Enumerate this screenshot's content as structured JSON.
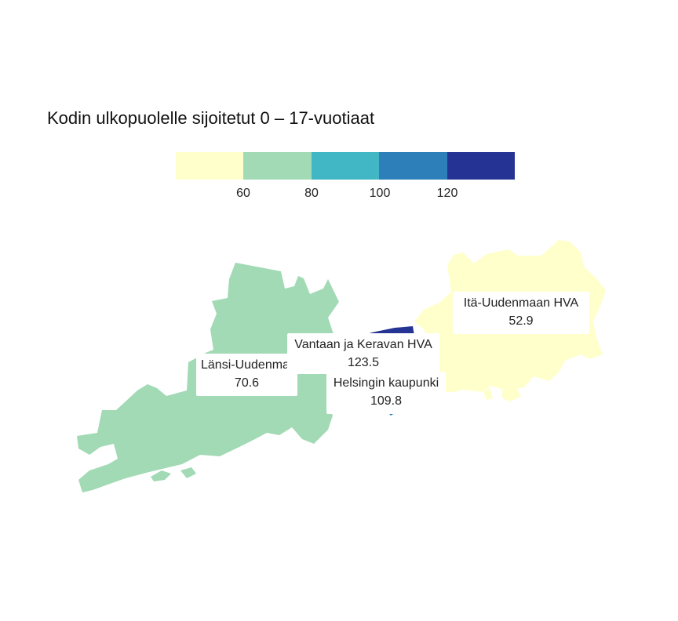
{
  "title": "Kodin ulkopuolelle sijoitetut 0 – 17-vuotiaat",
  "legend": {
    "colors": [
      "#ffffcc",
      "#a1dab4",
      "#41b6c4",
      "#2c7fb8",
      "#253494"
    ],
    "ticks": [
      "60",
      "80",
      "100",
      "120"
    ]
  },
  "regions": [
    {
      "name": "Länsi-Uudenmaan HVA",
      "value": "70.6",
      "color": "#a1dab4"
    },
    {
      "name": "Itä-Uudenmaan HVA",
      "value": "52.9",
      "color": "#ffffcc"
    },
    {
      "name": "Vantaan ja Keravan HVA",
      "value": "123.5",
      "color": "#253494"
    },
    {
      "name": "Helsingin kaupunki",
      "value": "109.8",
      "color": "#2c7fb8"
    }
  ]
}
